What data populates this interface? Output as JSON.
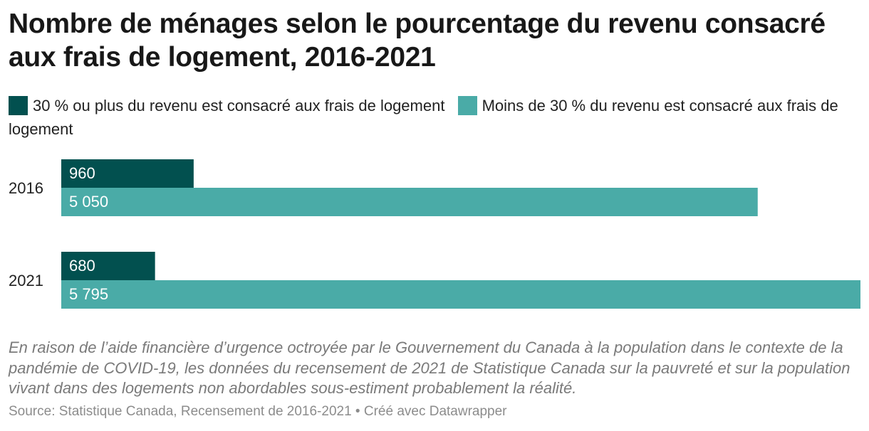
{
  "chart": {
    "title": "Nombre de ménages selon le pourcentage du revenu consacré aux frais de logement, 2016-2021",
    "note": "En raison de l’aide financière d’urgence octroyée par le Gouvernement du Canada à la population dans le contexte de la pandémie de COVID-19, les données du recensement de 2021 de Statistique Canada sur la pauvreté et sur la population vivant dans des logements non abordables sous-estiment probablement la réalité.",
    "source": "Source: Statistique Canada, Recensement de 2016-2021 • Créé avec Datawrapper"
  },
  "legend": {
    "items": [
      {
        "label": "30 % ou plus du revenu est consacré aux frais de logement",
        "color": "#02504f"
      },
      {
        "label": "Moins de 30 % du revenu est consacré aux frais de logement",
        "color": "#4aaba7"
      }
    ]
  },
  "chart_data": {
    "type": "bar",
    "orientation": "horizontal",
    "categories": [
      "2016",
      "2021"
    ],
    "series": [
      {
        "name": "30 % ou plus du revenu est consacré aux frais de logement",
        "values": [
          960,
          680
        ],
        "labels": [
          "960",
          "680"
        ],
        "color": "#02504f"
      },
      {
        "name": "Moins de 30 % du revenu est consacré aux frais de logement",
        "values": [
          5050,
          5795
        ],
        "labels": [
          "5 050",
          "5 795"
        ],
        "color": "#4aaba7"
      }
    ],
    "xlim": [
      0,
      5795
    ],
    "grid": false,
    "legend_position": "top"
  }
}
